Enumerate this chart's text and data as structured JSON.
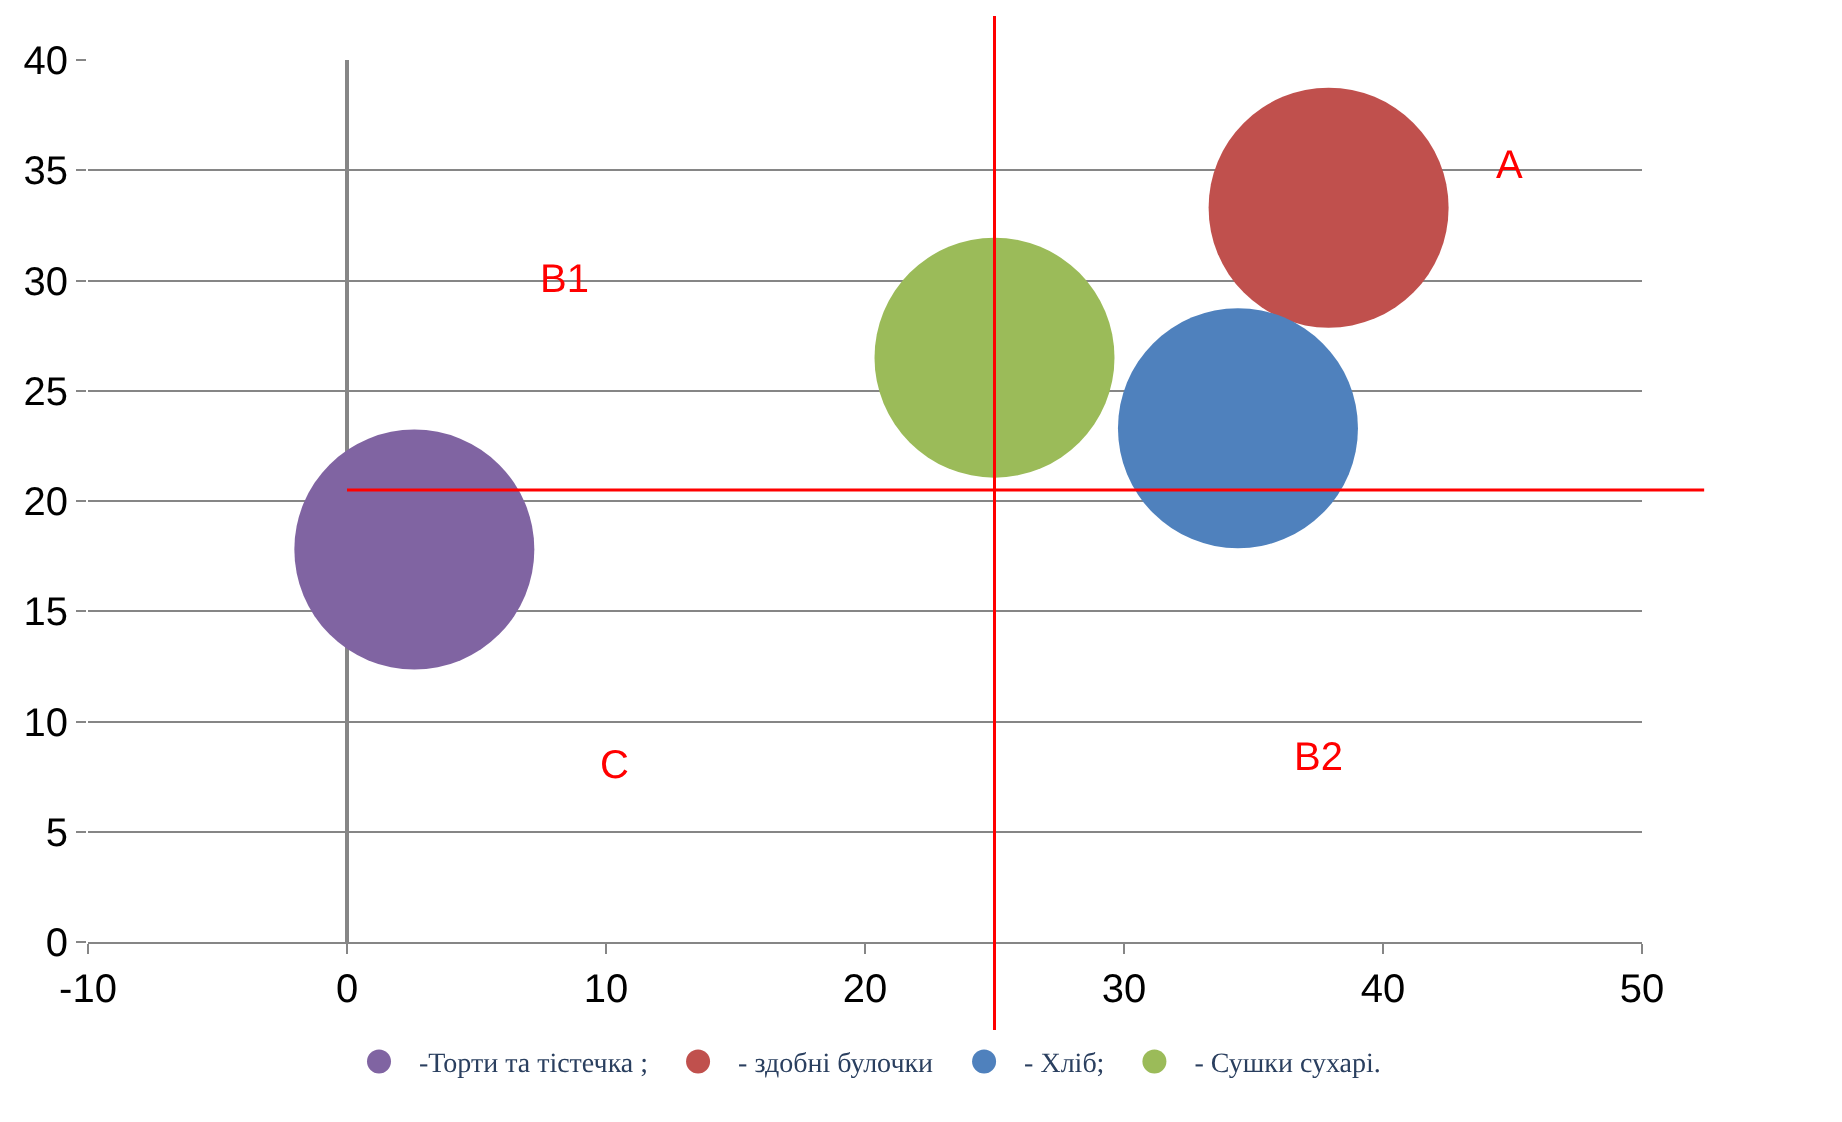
{
  "chart_data": {
    "type": "bubble",
    "series": [
      {
        "name": "-Торти та тістечка ;",
        "color": "#8064a2",
        "x": [
          2.6
        ],
        "values": [
          17.8
        ],
        "sizes": [
          1
        ]
      },
      {
        "name": "- здобні булочки",
        "color": "#c0504d",
        "x": [
          37.9
        ],
        "values": [
          33.3
        ],
        "sizes": [
          1
        ]
      },
      {
        "name": "- Хліб;",
        "color": "#4f81bd",
        "x": [
          34.4
        ],
        "values": [
          23.3
        ],
        "sizes": [
          1
        ]
      },
      {
        "name": "- Сушки сухарі.",
        "color": "#9bbb59",
        "x": [
          25.0
        ],
        "values": [
          26.5
        ],
        "sizes": [
          1
        ]
      }
    ],
    "xlim": [
      -10,
      50
    ],
    "xticks": [
      -10,
      0,
      10,
      20,
      30,
      40,
      50
    ],
    "ylim": [
      0,
      40
    ],
    "yticks": [
      0,
      5,
      10,
      15,
      20,
      25,
      30,
      35,
      40
    ],
    "grid": "y",
    "legend": "bottom",
    "ref_lines": [
      {
        "axis": "x",
        "value": 25,
        "color": "#ff0000"
      },
      {
        "axis": "y",
        "value": 20.5,
        "color": "#ff0000"
      }
    ],
    "annotations": [
      "A",
      "B1",
      "C",
      "B2"
    ]
  }
}
